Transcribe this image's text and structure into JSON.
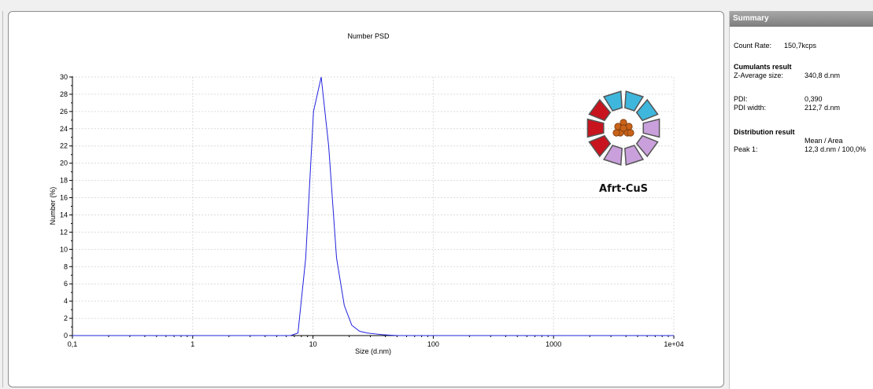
{
  "summary": {
    "header": "Summary",
    "count_rate_label": "Count Rate:",
    "count_rate_value": "150,7kcps",
    "cumulants_title": "Cumulants result",
    "z_average_label": "Z-Average size:",
    "z_average_value": "340,8 d.nm",
    "pdi_label": "PDI:",
    "pdi_value": "0,390",
    "pdi_width_label": "PDI width:",
    "pdi_width_value": "212,7 d.nm",
    "distribution_title": "Distribution result",
    "mean_area_header": "Mean / Area",
    "peak1_label": "Peak 1:",
    "peak1_value": "12,3 d.nm / 100,0%"
  },
  "logo": {
    "text": "Afrt-CuS",
    "colors": {
      "blue": "#3fb6dc",
      "purple": "#c9a0dc",
      "red": "#c8141e",
      "core": "#c9631a"
    }
  },
  "chart_data": {
    "type": "line",
    "title": "Number PSD",
    "xlabel": "Size (d.nm)",
    "ylabel": "Number (%)",
    "x_scale": "log",
    "xlim": [
      0.1,
      10000
    ],
    "ylim": [
      0,
      30
    ],
    "x_ticks": [
      0.1,
      1,
      10,
      100,
      1000,
      10000
    ],
    "x_tick_labels": [
      "0,1",
      "1",
      "10",
      "100",
      "1000",
      "1e+04"
    ],
    "y_ticks": [
      0,
      2,
      4,
      6,
      8,
      10,
      12,
      14,
      16,
      18,
      20,
      22,
      24,
      26,
      28,
      30
    ],
    "grid": true,
    "line_color": "#2222dd",
    "series": [
      {
        "x": [
          0.1,
          6.5,
          7.5,
          8.7,
          10.1,
          11.7,
          13.5,
          15.7,
          18.2,
          21.0,
          24.4,
          28.2,
          32.7,
          37.8,
          43.8,
          50.7,
          60,
          100,
          1000,
          10000
        ],
        "values": [
          0,
          0,
          0.3,
          9,
          26,
          30,
          22,
          9,
          3.5,
          1.2,
          0.5,
          0.3,
          0.2,
          0.1,
          0.05,
          0,
          0,
          0,
          0,
          0
        ]
      }
    ]
  }
}
